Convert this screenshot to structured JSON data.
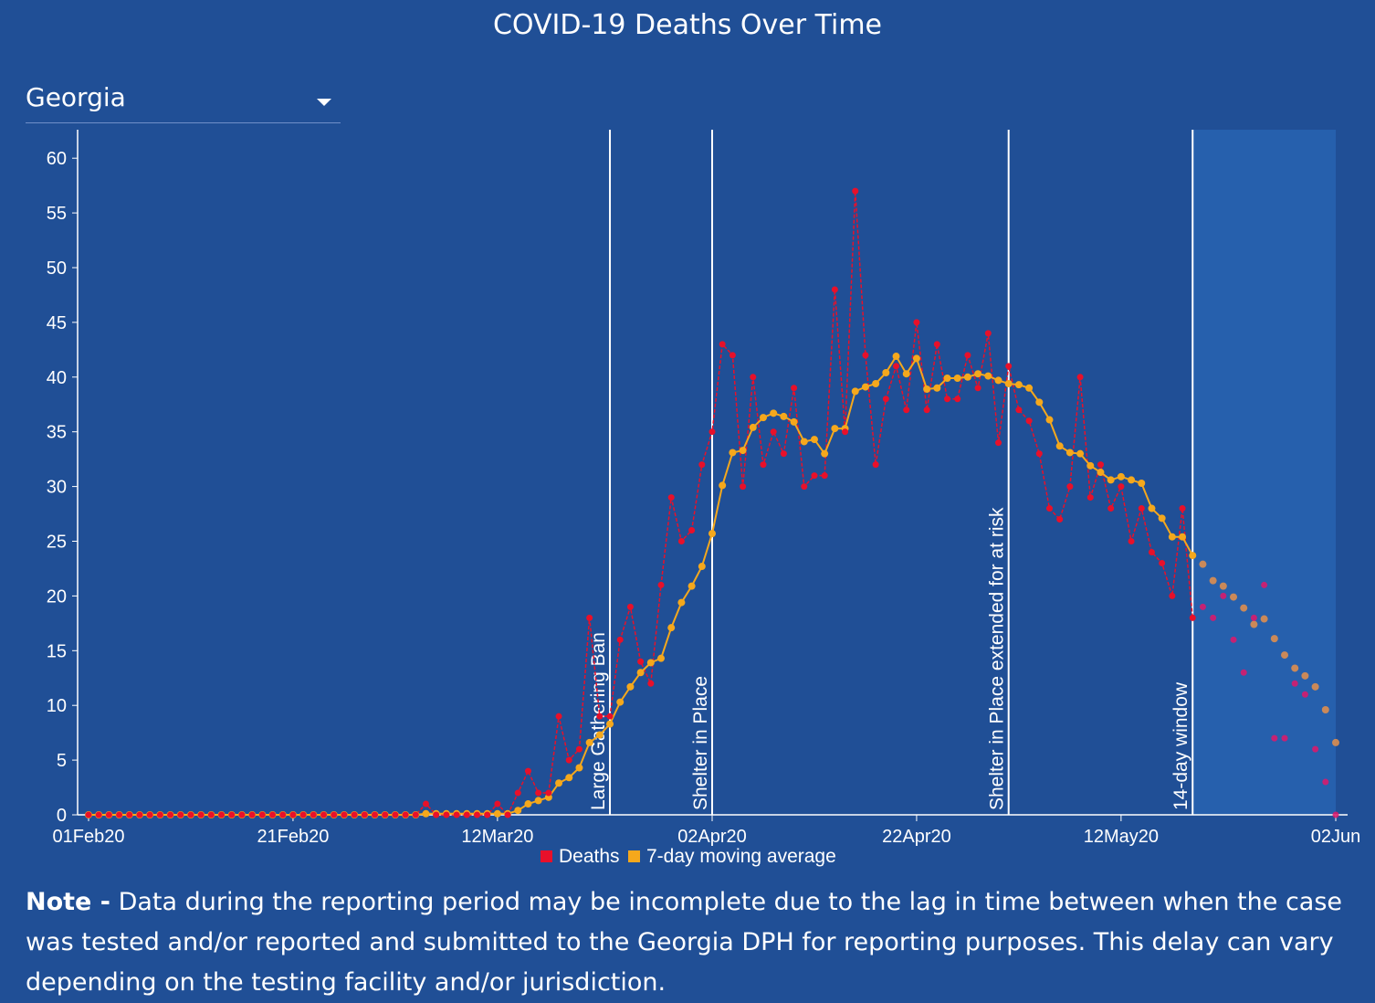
{
  "title": "COVID-19 Deaths Over Time",
  "dropdown": {
    "selected": "Georgia"
  },
  "note": {
    "label": "Note -",
    "text": " Data during the reporting period may be incomplete due to the lag in time between when the case was tested and/or reported and submitted to the Georgia DPH for reporting purposes. This delay can vary depending on the testing facility and/or jurisdiction."
  },
  "colors": {
    "background": "#204f96",
    "window_shade": "#2660ad",
    "deaths": "#e8102a",
    "moving_average": "#f5a81c",
    "deaths_preliminary": "#e0186a",
    "moving_average_preliminary": "#e8904a"
  },
  "chart_data": {
    "type": "line",
    "title": "",
    "xlabel": "",
    "ylabel": "",
    "ylim": [
      0,
      62
    ],
    "y_ticks": [
      0,
      5,
      10,
      15,
      20,
      25,
      30,
      35,
      40,
      45,
      50,
      55,
      60
    ],
    "x_ticks": [
      {
        "date": "2020-02-01",
        "label": "01Feb20"
      },
      {
        "date": "2020-02-21",
        "label": "21Feb20"
      },
      {
        "date": "2020-03-12",
        "label": "12Mar20"
      },
      {
        "date": "2020-04-02",
        "label": "02Apr20"
      },
      {
        "date": "2020-04-22",
        "label": "22Apr20"
      },
      {
        "date": "2020-05-12",
        "label": "12May20"
      },
      {
        "date": "2020-06-02",
        "label": "02Jun"
      }
    ],
    "grid": false,
    "legend": {
      "placement": "bottom",
      "entries": [
        "Deaths",
        "7-day moving average"
      ]
    },
    "events": [
      {
        "date": "2020-03-23",
        "label": "Large Gathering Ban"
      },
      {
        "date": "2020-04-02",
        "label": "Shelter in Place"
      },
      {
        "date": "2020-05-01",
        "label": "Shelter in Place extended for at risk"
      },
      {
        "date": "2020-05-19",
        "label": "14-day window"
      }
    ],
    "preliminary_after": "2020-05-19",
    "x": [
      "2020-02-01",
      "2020-02-02",
      "2020-02-03",
      "2020-02-04",
      "2020-02-05",
      "2020-02-06",
      "2020-02-07",
      "2020-02-08",
      "2020-02-09",
      "2020-02-10",
      "2020-02-11",
      "2020-02-12",
      "2020-02-13",
      "2020-02-14",
      "2020-02-15",
      "2020-02-16",
      "2020-02-17",
      "2020-02-18",
      "2020-02-19",
      "2020-02-20",
      "2020-02-21",
      "2020-02-22",
      "2020-02-23",
      "2020-02-24",
      "2020-02-25",
      "2020-02-26",
      "2020-02-27",
      "2020-02-28",
      "2020-02-29",
      "2020-03-01",
      "2020-03-02",
      "2020-03-03",
      "2020-03-04",
      "2020-03-05",
      "2020-03-06",
      "2020-03-07",
      "2020-03-08",
      "2020-03-09",
      "2020-03-10",
      "2020-03-11",
      "2020-03-12",
      "2020-03-13",
      "2020-03-14",
      "2020-03-15",
      "2020-03-16",
      "2020-03-17",
      "2020-03-18",
      "2020-03-19",
      "2020-03-20",
      "2020-03-21",
      "2020-03-22",
      "2020-03-23",
      "2020-03-24",
      "2020-03-25",
      "2020-03-26",
      "2020-03-27",
      "2020-03-28",
      "2020-03-29",
      "2020-03-30",
      "2020-03-31",
      "2020-04-01",
      "2020-04-02",
      "2020-04-03",
      "2020-04-04",
      "2020-04-05",
      "2020-04-06",
      "2020-04-07",
      "2020-04-08",
      "2020-04-09",
      "2020-04-10",
      "2020-04-11",
      "2020-04-12",
      "2020-04-13",
      "2020-04-14",
      "2020-04-15",
      "2020-04-16",
      "2020-04-17",
      "2020-04-18",
      "2020-04-19",
      "2020-04-20",
      "2020-04-21",
      "2020-04-22",
      "2020-04-23",
      "2020-04-24",
      "2020-04-25",
      "2020-04-26",
      "2020-04-27",
      "2020-04-28",
      "2020-04-29",
      "2020-04-30",
      "2020-05-01",
      "2020-05-02",
      "2020-05-03",
      "2020-05-04",
      "2020-05-05",
      "2020-05-06",
      "2020-05-07",
      "2020-05-08",
      "2020-05-09",
      "2020-05-10",
      "2020-05-11",
      "2020-05-12",
      "2020-05-13",
      "2020-05-14",
      "2020-05-15",
      "2020-05-16",
      "2020-05-17",
      "2020-05-18",
      "2020-05-19",
      "2020-05-20",
      "2020-05-21",
      "2020-05-22",
      "2020-05-23",
      "2020-05-24",
      "2020-05-25",
      "2020-05-26",
      "2020-05-27",
      "2020-05-28",
      "2020-05-29",
      "2020-05-30",
      "2020-05-31",
      "2020-06-01",
      "2020-06-02"
    ],
    "series": [
      {
        "name": "Deaths",
        "values": [
          0,
          0,
          0,
          0,
          0,
          0,
          0,
          0,
          0,
          0,
          0,
          0,
          0,
          0,
          0,
          0,
          0,
          0,
          0,
          0,
          0,
          0,
          0,
          0,
          0,
          0,
          0,
          0,
          0,
          0,
          0,
          0,
          0,
          1,
          0,
          0,
          0,
          0,
          0,
          0,
          1,
          0,
          2,
          4,
          2,
          2,
          9,
          5,
          6,
          18,
          9,
          9,
          16,
          19,
          14,
          12,
          21,
          29,
          25,
          26,
          32,
          35,
          43,
          42,
          30,
          40,
          32,
          35,
          33,
          39,
          30,
          31,
          31,
          48,
          35,
          57,
          42,
          32,
          38,
          41,
          37,
          45,
          37,
          43,
          38,
          38,
          42,
          39,
          44,
          34,
          41,
          37,
          36,
          33,
          28,
          27,
          30,
          40,
          29,
          32,
          28,
          30,
          25,
          28,
          24,
          23,
          20,
          28,
          18,
          19,
          18,
          20,
          16,
          13,
          18,
          21,
          7,
          7,
          12,
          11,
          6,
          3,
          0
        ]
      },
      {
        "name": "7-day moving average",
        "values": [
          0,
          0,
          0,
          0,
          0,
          0,
          0,
          0,
          0,
          0,
          0,
          0,
          0,
          0,
          0,
          0,
          0,
          0,
          0,
          0,
          0,
          0,
          0,
          0,
          0,
          0,
          0,
          0,
          0,
          0,
          0,
          0,
          0,
          0.1,
          0.1,
          0.1,
          0.1,
          0.1,
          0.1,
          0.1,
          0.1,
          0.1,
          0.4,
          1.0,
          1.3,
          1.6,
          2.9,
          3.4,
          4.3,
          6.6,
          7.3,
          8.3,
          10.3,
          11.7,
          13.0,
          13.9,
          14.3,
          17.1,
          19.4,
          20.9,
          22.7,
          25.7,
          30.1,
          33.1,
          33.3,
          35.4,
          36.3,
          36.7,
          36.4,
          35.9,
          34.1,
          34.3,
          33.0,
          35.3,
          35.3,
          38.7,
          39.1,
          39.4,
          40.4,
          41.9,
          40.3,
          41.7,
          38.9,
          39.0,
          39.9,
          39.9,
          40.0,
          40.3,
          40.1,
          39.7,
          39.4,
          39.3,
          39.0,
          37.7,
          36.1,
          33.7,
          33.1,
          33.0,
          31.9,
          31.3,
          30.6,
          30.9,
          30.6,
          30.3,
          28.0,
          27.1,
          25.4,
          25.4,
          23.7,
          22.9,
          21.4,
          20.9,
          19.9,
          18.9,
          17.4,
          17.9,
          16.1,
          14.6,
          13.4,
          12.7,
          11.7,
          9.6,
          6.6
        ]
      }
    ]
  }
}
